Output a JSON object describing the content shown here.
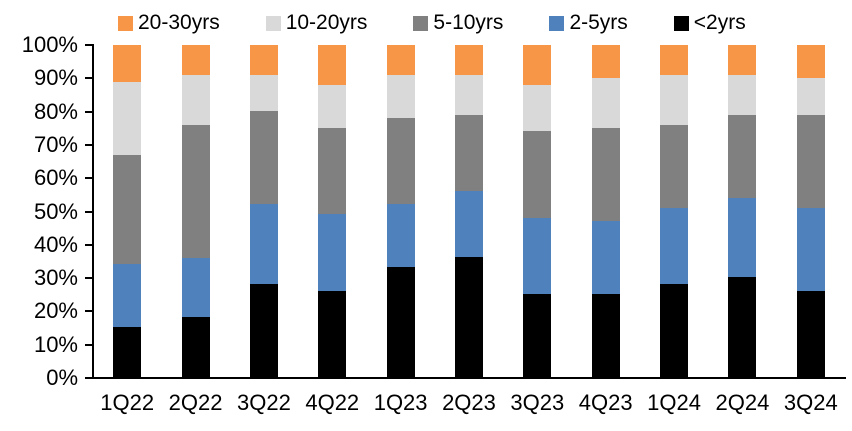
{
  "chart_data": {
    "type": "bar",
    "stacked": true,
    "stacked_100_percent": true,
    "title": "",
    "xlabel": "",
    "ylabel": "",
    "grid": false,
    "legend_position": "top",
    "legend_order": [
      "20-30yrs",
      "10-20yrs",
      "5-10yrs",
      "2-5yrs",
      "<2yrs"
    ],
    "categories": [
      "1Q22",
      "2Q22",
      "3Q22",
      "4Q22",
      "1Q23",
      "2Q23",
      "3Q23",
      "4Q23",
      "1Q24",
      "2Q24",
      "3Q24"
    ],
    "series": [
      {
        "name": "<2yrs",
        "color": "#000000",
        "values": [
          15,
          18,
          28,
          26,
          33,
          36,
          25,
          25,
          28,
          30,
          26
        ]
      },
      {
        "name": "2-5yrs",
        "color": "#4F81BD",
        "values": [
          19,
          18,
          24,
          23,
          19,
          20,
          23,
          22,
          23,
          24,
          25
        ]
      },
      {
        "name": "5-10yrs",
        "color": "#808080",
        "values": [
          33,
          40,
          28,
          26,
          26,
          23,
          26,
          28,
          25,
          25,
          28
        ]
      },
      {
        "name": "10-20yrs",
        "color": "#D9D9D9",
        "values": [
          22,
          15,
          11,
          13,
          13,
          12,
          14,
          15,
          15,
          12,
          11
        ]
      },
      {
        "name": "20-30yrs",
        "color": "#F79646",
        "values": [
          11,
          9,
          9,
          12,
          9,
          9,
          12,
          10,
          9,
          9,
          10
        ]
      }
    ],
    "y_axis": {
      "min": 0,
      "max": 100,
      "tick_labels_top_to_bottom": [
        "100%",
        "90%",
        "80%",
        "70%",
        "60%",
        "50%",
        "40%",
        "30%",
        "20%",
        "10%",
        "0%"
      ]
    }
  }
}
